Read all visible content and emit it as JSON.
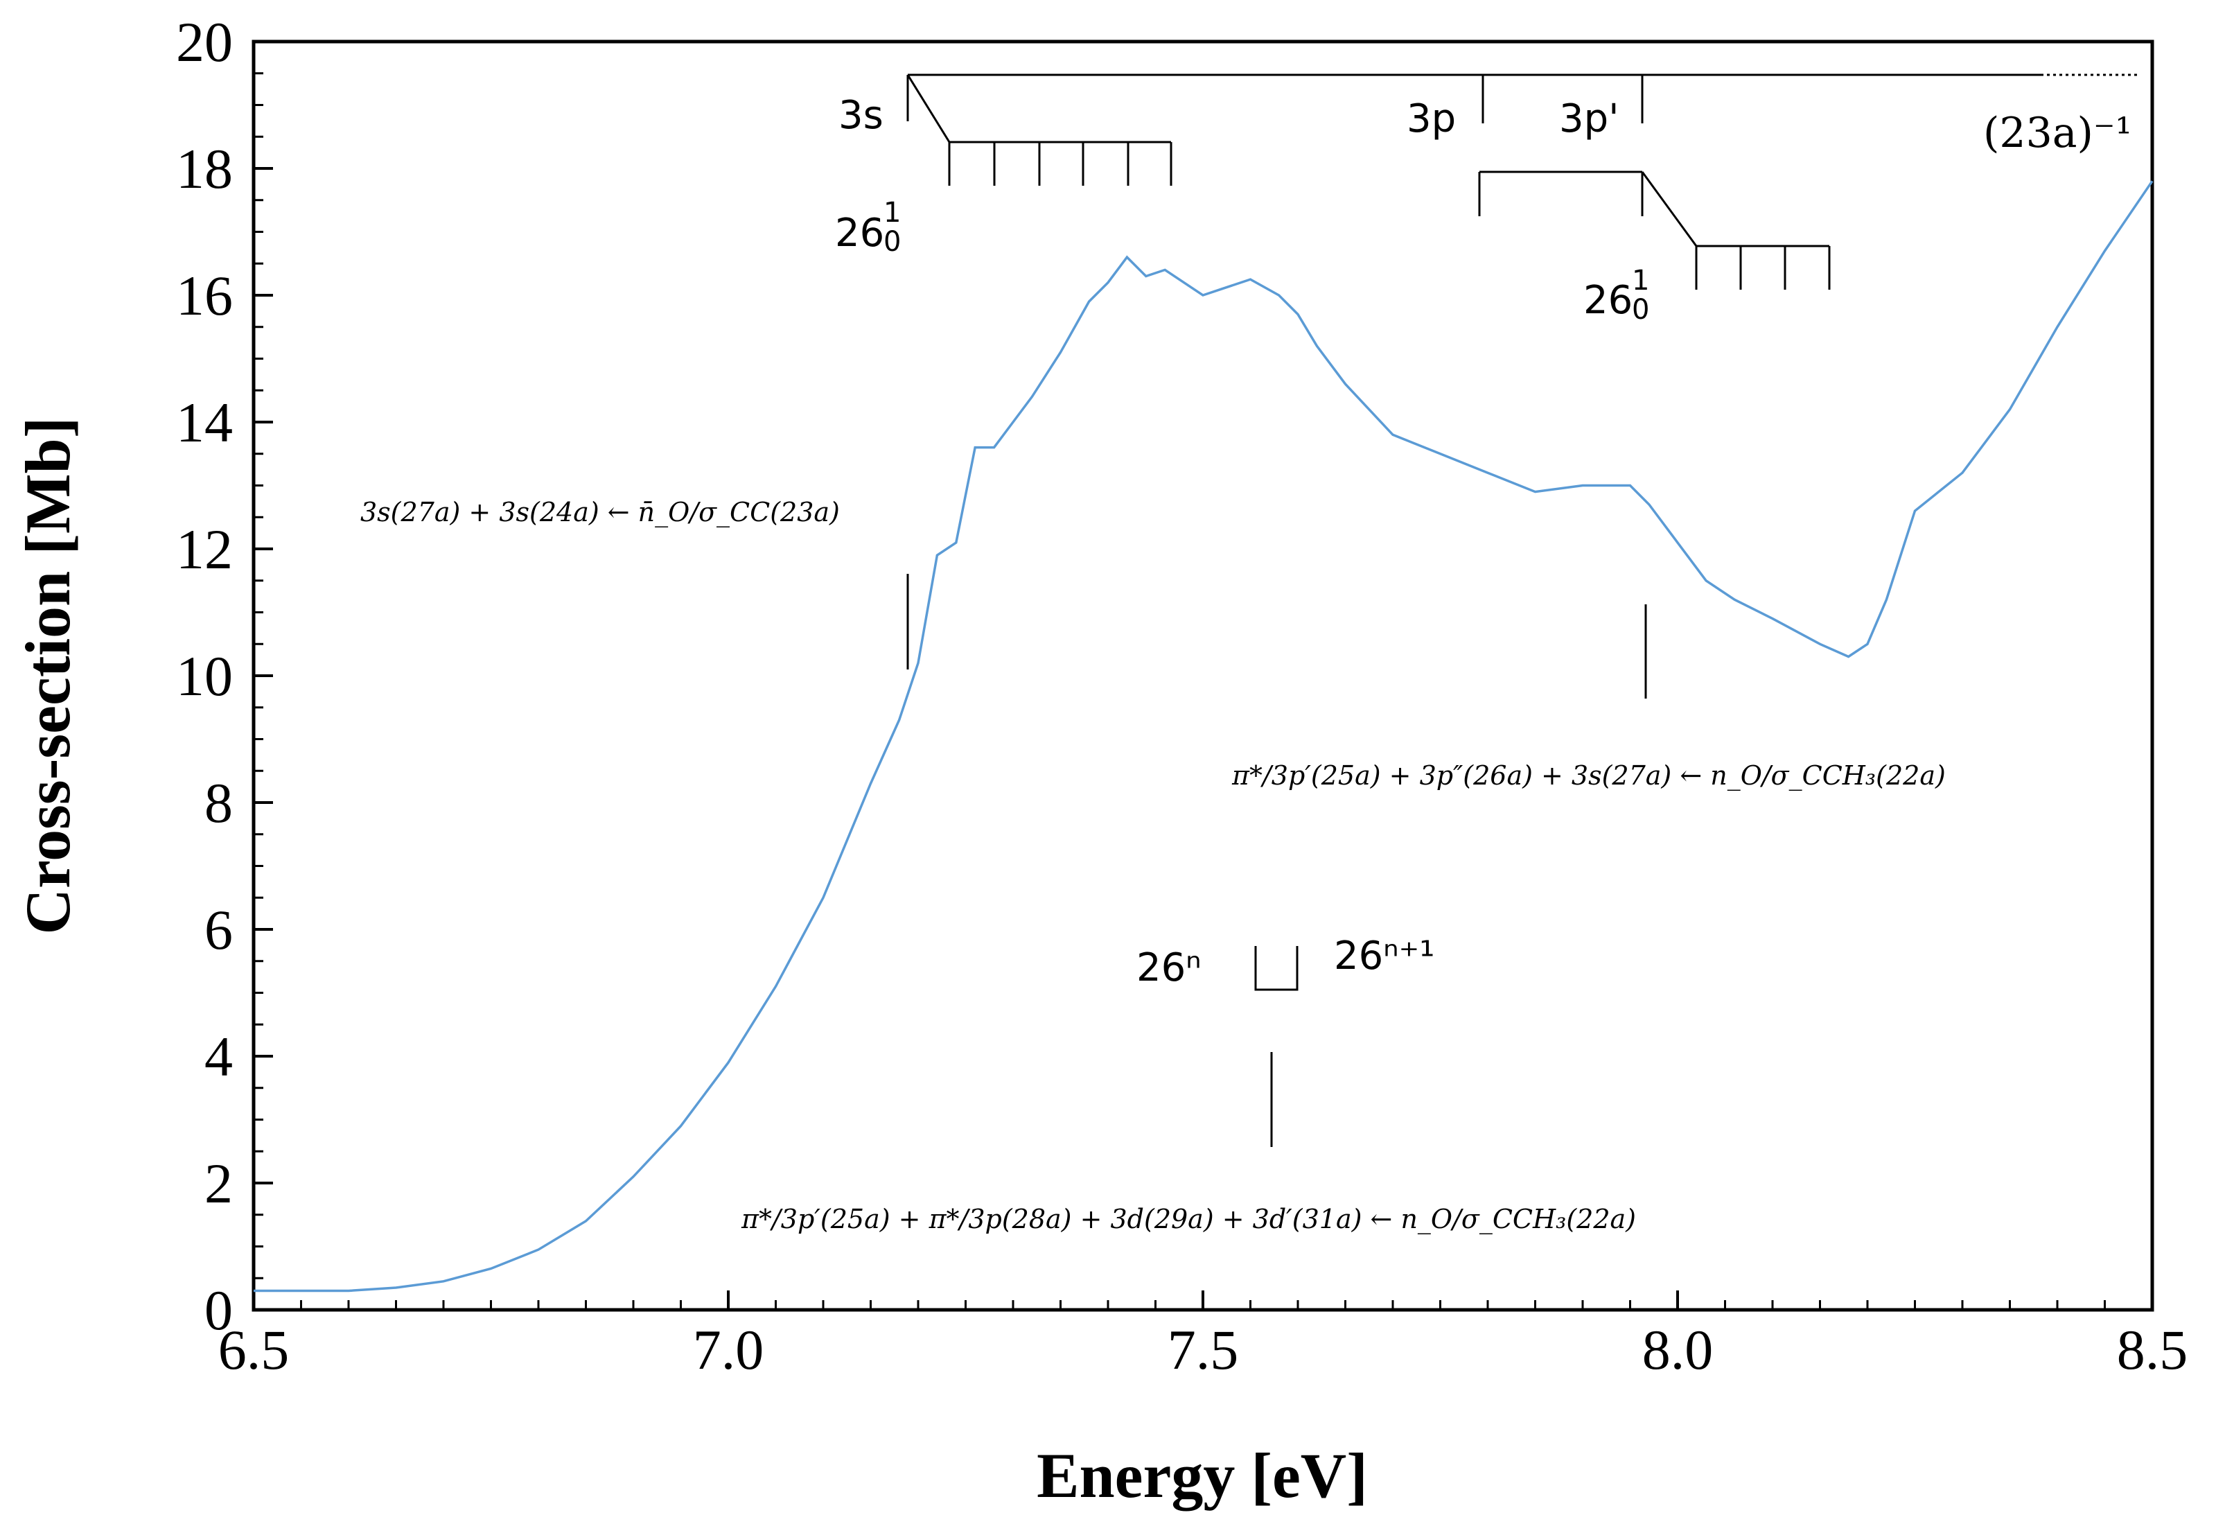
{
  "chart_data": {
    "type": "line",
    "xlabel": "Energy [eV]",
    "ylabel": "Cross-section [Mb]",
    "xlim": [
      6.5,
      8.5
    ],
    "ylim": [
      0,
      20
    ],
    "xticks": [
      "6.5",
      "7.0",
      "7.5",
      "8.0",
      "8.5"
    ],
    "yticks": [
      "0",
      "2",
      "4",
      "6",
      "8",
      "10",
      "12",
      "14",
      "16",
      "18",
      "20"
    ],
    "grid": false,
    "line_color": "#5b9bd5",
    "series": [
      {
        "name": "cross-section",
        "x": [
          6.5,
          6.55,
          6.6,
          6.65,
          6.7,
          6.75,
          6.8,
          6.85,
          6.9,
          6.95,
          7.0,
          7.05,
          7.1,
          7.15,
          7.18,
          7.2,
          7.22,
          7.24,
          7.26,
          7.28,
          7.3,
          7.32,
          7.35,
          7.38,
          7.4,
          7.42,
          7.44,
          7.46,
          7.48,
          7.5,
          7.52,
          7.55,
          7.58,
          7.6,
          7.62,
          7.65,
          7.7,
          7.75,
          7.8,
          7.85,
          7.9,
          7.95,
          7.97,
          8.0,
          8.03,
          8.06,
          8.1,
          8.15,
          8.18,
          8.2,
          8.22,
          8.25,
          8.3,
          8.35,
          8.4,
          8.45,
          8.5
        ],
        "y": [
          0.3,
          0.3,
          0.3,
          0.35,
          0.45,
          0.65,
          0.95,
          1.4,
          2.1,
          2.9,
          3.9,
          5.1,
          6.5,
          8.3,
          9.3,
          10.2,
          11.9,
          12.1,
          13.6,
          13.6,
          14.0,
          14.4,
          15.1,
          15.9,
          16.2,
          16.6,
          16.3,
          16.4,
          16.2,
          16.0,
          16.1,
          16.25,
          16.0,
          15.7,
          15.2,
          14.6,
          13.8,
          13.5,
          13.2,
          12.9,
          13.0,
          13.0,
          12.7,
          12.1,
          11.5,
          11.2,
          10.9,
          10.5,
          10.3,
          10.5,
          11.2,
          12.6,
          13.2,
          14.2,
          15.5,
          16.7,
          17.8
        ]
      }
    ],
    "annotations": {
      "ion_limit_label": "(23a)⁻¹",
      "progression_labels": [
        "3s",
        "3p",
        "3p'"
      ],
      "vib_label_base": "26",
      "vib_label_sup": "1",
      "vib_label_sub": "0",
      "transition_1": "3s(27a) + 3s(24a) ← n̄_O/σ_CC(23a)",
      "transition_2": "π*/3p′(25a) + 3p″(26a) + 3s(27a) ← n_O/σ_CCH₃(22a)",
      "transition_3": "π*/3p′(25a) + π*/3p(28a) + 3d(29a) + 3d′(31a) ← n_O/σ_CCH₃(22a)",
      "legend_left": "26ⁿ",
      "legend_right": "26ⁿ⁺¹"
    }
  }
}
